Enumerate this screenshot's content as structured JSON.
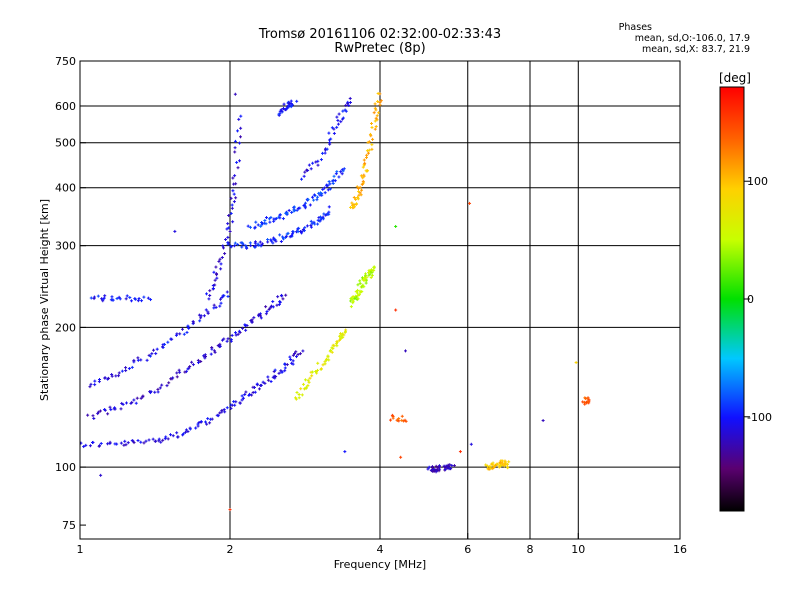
{
  "header": {
    "title": "Tromsø 20161106 02:32:00-02:33:43",
    "subtitle": "RwPretec (8p)"
  },
  "stats": {
    "title": "Phases",
    "o_line": "mean, sd,O:-106.0, 17.9",
    "x_line": "mean, sd,X:  83.7, 21.9"
  },
  "colorbar": {
    "unit": "[deg]",
    "tick_labels": [
      "100",
      "0",
      "-100"
    ],
    "tick_values": [
      100,
      0,
      -100
    ],
    "range": [
      -180,
      180
    ]
  },
  "chart_data": {
    "type": "scatter",
    "xlabel": "Frequency [MHz]",
    "ylabel": "Stationary phase Virtual Height [km]",
    "xscale": "log",
    "yscale": "log",
    "xlim": [
      1,
      16
    ],
    "ylim": [
      70,
      750
    ],
    "xticks": [
      1,
      2,
      4,
      6,
      8,
      10,
      16
    ],
    "xtick_labels": [
      "1",
      "2",
      "4",
      "6",
      "8",
      "10",
      "16"
    ],
    "xgrid": [
      2,
      4,
      6,
      8,
      10
    ],
    "yticks": [
      75,
      100,
      200,
      300,
      400,
      500,
      600,
      750
    ],
    "ytick_labels": [
      "75",
      "100",
      "200",
      "300",
      "400",
      "500",
      "600",
      "750"
    ],
    "ygrid": [
      100,
      200,
      300,
      400,
      500,
      600
    ],
    "grid": true,
    "colorscale": "rainbow phase [-180, 180] deg",
    "traces": [
      {
        "x": [
          1.0,
          1.2,
          1.4,
          1.6,
          1.8,
          2.0,
          2.2,
          2.4,
          2.6,
          2.8
        ],
        "y": [
          112,
          112,
          114,
          118,
          125,
          135,
          145,
          155,
          165,
          180
        ],
        "phase": -110
      },
      {
        "x": [
          1.05,
          1.2,
          1.4,
          1.6,
          1.8,
          2.0,
          2.2,
          2.4,
          2.6
        ],
        "y": [
          128,
          135,
          145,
          160,
          175,
          190,
          205,
          220,
          235
        ],
        "phase": -115
      },
      {
        "x": [
          1.05,
          1.2,
          1.4,
          1.6,
          1.8,
          2.0
        ],
        "y": [
          150,
          160,
          175,
          195,
          215,
          240
        ],
        "phase": -105
      },
      {
        "x": [
          1.05,
          1.2,
          1.4
        ],
        "y": [
          232,
          230,
          232
        ],
        "phase": -100
      },
      {
        "x": [
          1.8,
          1.9,
          2.0,
          2.05,
          2.1
        ],
        "y": [
          230,
          270,
          330,
          420,
          580
        ],
        "phase": -110
      },
      {
        "x": [
          2.0,
          2.2,
          2.4,
          2.6,
          2.8,
          3.0,
          3.2
        ],
        "y": [
          300,
          300,
          305,
          315,
          325,
          340,
          360
        ],
        "phase": -95
      },
      {
        "x": [
          2.2,
          2.4,
          2.6,
          2.8,
          3.0,
          3.2,
          3.4
        ],
        "y": [
          330,
          340,
          350,
          365,
          385,
          410,
          440
        ],
        "phase": -90
      },
      {
        "x": [
          2.5,
          2.6,
          2.7
        ],
        "y": [
          580,
          600,
          610
        ],
        "phase": -100
      },
      {
        "x": [
          2.8,
          3.1,
          3.3,
          3.5
        ],
        "y": [
          420,
          480,
          560,
          620
        ],
        "phase": -105
      },
      {
        "x": [
          2.7,
          2.9,
          3.1,
          3.3,
          3.4
        ],
        "y": [
          140,
          155,
          170,
          185,
          200
        ],
        "phase": 70
      },
      {
        "x": [
          3.5,
          3.6,
          3.7,
          3.8,
          3.9
        ],
        "y": [
          225,
          235,
          250,
          260,
          270
        ],
        "phase": 45
      },
      {
        "x": [
          3.5,
          3.6,
          3.7,
          3.8,
          3.9,
          4.0
        ],
        "y": [
          360,
          380,
          420,
          480,
          560,
          640
        ],
        "phase": 105
      },
      {
        "x": [
          5.0,
          5.2,
          5.4,
          5.6
        ],
        "y": [
          100,
          99,
          100,
          101
        ],
        "phase": -120
      },
      {
        "x": [
          6.5,
          6.8,
          7.0,
          7.3
        ],
        "y": [
          100,
          101,
          102,
          101
        ],
        "phase": 95
      },
      {
        "x": [
          4.2,
          4.5
        ],
        "y": [
          128,
          127
        ],
        "phase": 140
      },
      {
        "x": [
          10.3,
          10.4
        ],
        "y": [
          140,
          138
        ],
        "phase": 145
      }
    ],
    "points": [
      {
        "x": 2.05,
        "y": 636,
        "phase": -120
      },
      {
        "x": 1.1,
        "y": 96,
        "phase": -115
      },
      {
        "x": 2.0,
        "y": 81,
        "phase": 160
      },
      {
        "x": 4.3,
        "y": 330,
        "phase": 10
      },
      {
        "x": 4.3,
        "y": 218,
        "phase": 160
      },
      {
        "x": 4.5,
        "y": 178,
        "phase": -120
      },
      {
        "x": 4.4,
        "y": 105,
        "phase": 150
      },
      {
        "x": 6.05,
        "y": 370,
        "phase": 150
      },
      {
        "x": 6.1,
        "y": 112,
        "phase": -110
      },
      {
        "x": 8.5,
        "y": 126,
        "phase": -120
      },
      {
        "x": 9.9,
        "y": 168,
        "phase": 90
      },
      {
        "x": 1.55,
        "y": 322,
        "phase": -110
      },
      {
        "x": 5.8,
        "y": 108,
        "phase": 160
      },
      {
        "x": 3.4,
        "y": 108,
        "phase": -100
      }
    ]
  }
}
